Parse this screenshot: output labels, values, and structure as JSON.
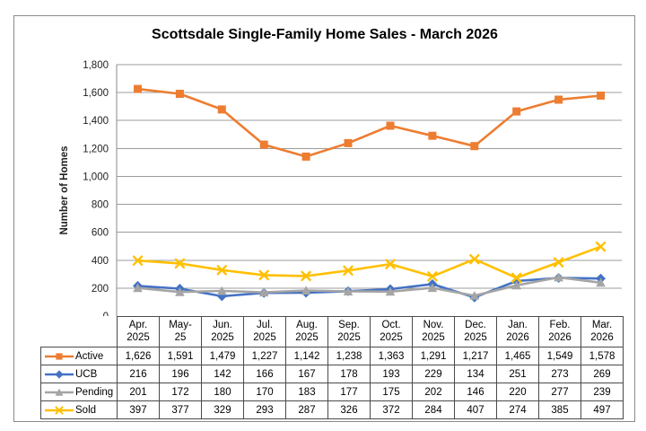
{
  "chart_data": {
    "type": "line",
    "title": "Scottsdale Single-Family Home Sales - March 2026",
    "ylabel": "Number of Homes",
    "xlabel": "",
    "ylim": [
      0,
      1800
    ],
    "ytick_step": 200,
    "ytick_labels": [
      "0",
      "200",
      "400",
      "600",
      "800",
      "1,000",
      "1,200",
      "1,400",
      "1,600",
      "1,800"
    ],
    "grid": true,
    "legend_position": "left-of-data-table",
    "data_table_shown": true,
    "categories": [
      "Apr.\n2025",
      "May-\n25",
      "Jun.\n2025",
      "Jul.\n2025",
      "Aug.\n2025",
      "Sep.\n2025",
      "Oct.\n2025",
      "Nov.\n2025",
      "Dec.\n2025",
      "Jan.\n2026",
      "Feb.\n2026",
      "Mar.\n2026"
    ],
    "series": [
      {
        "name": "Active",
        "marker": "square",
        "color": "#ED7D31",
        "values": [
          1626,
          1591,
          1479,
          1227,
          1142,
          1238,
          1363,
          1291,
          1217,
          1465,
          1549,
          1578
        ]
      },
      {
        "name": "UCB",
        "marker": "diamond",
        "color": "#4472C4",
        "values": [
          216,
          196,
          142,
          166,
          167,
          178,
          193,
          229,
          134,
          251,
          273,
          269
        ]
      },
      {
        "name": "Pending",
        "marker": "triangle",
        "color": "#A5A5A5",
        "values": [
          201,
          172,
          180,
          170,
          183,
          177,
          175,
          202,
          146,
          220,
          277,
          239
        ]
      },
      {
        "name": "Sold",
        "marker": "x",
        "color": "#FFC000",
        "values": [
          397,
          377,
          329,
          293,
          287,
          326,
          372,
          284,
          407,
          274,
          385,
          497
        ]
      }
    ]
  }
}
